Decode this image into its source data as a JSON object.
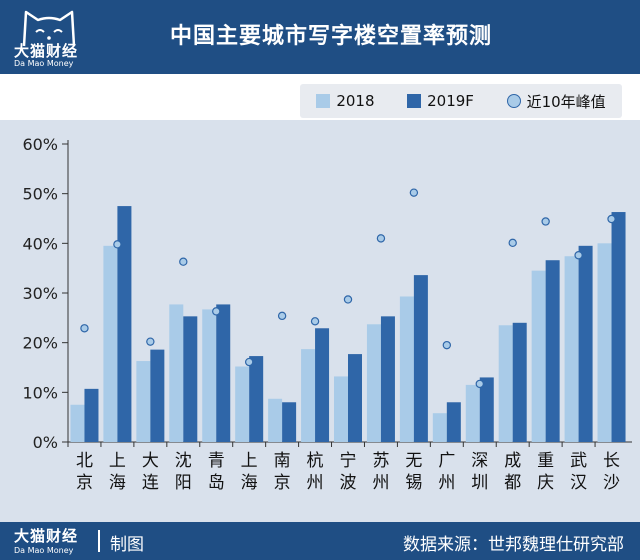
{
  "brand": {
    "name_cn": "大猫财经",
    "name_en": "Da Mao Money"
  },
  "title": "中国主要城市写字楼空置率预测",
  "footer": {
    "made": "制图",
    "source": "数据来源：世邦魏理仕研究部"
  },
  "colors": {
    "s2018": "#a9cbe8",
    "s2019": "#2f66a8",
    "peak_fill": "#a9cbe8",
    "peak_stroke": "#2f66a8",
    "header": "#1f4e84",
    "plot_bg": "#d9e1ec"
  },
  "chart_data": {
    "type": "bar",
    "categories": [
      "北京",
      "上海",
      "大连",
      "沈阳",
      "青岛",
      "上海",
      "南京",
      "杭州",
      "宁波",
      "苏州",
      "无锡",
      "广州",
      "深圳",
      "成都",
      "重庆",
      "武汉",
      "长沙"
    ],
    "series": [
      {
        "name": "2018",
        "values": [
          7.5,
          39.5,
          16.3,
          27.7,
          26.7,
          15.2,
          8.7,
          18.7,
          13.2,
          23.7,
          29.3,
          5.8,
          11.5,
          23.5,
          34.5,
          37.4,
          40.0
        ]
      },
      {
        "name": "2019F",
        "values": [
          10.7,
          47.5,
          18.6,
          25.3,
          27.7,
          17.3,
          8.0,
          22.9,
          17.7,
          25.3,
          33.6,
          8.0,
          13.0,
          24.0,
          36.6,
          39.5,
          46.3
        ]
      },
      {
        "name": "近10年峰值",
        "type": "scatter",
        "values": [
          22.9,
          39.8,
          20.2,
          36.3,
          26.3,
          16.1,
          25.4,
          24.3,
          28.7,
          41.0,
          50.2,
          19.5,
          11.7,
          40.1,
          44.4,
          37.6,
          44.9
        ]
      }
    ],
    "ylim": [
      0,
      60
    ],
    "yticks": [
      0,
      10,
      20,
      30,
      40,
      50,
      60
    ],
    "ytick_labels": [
      "0%",
      "10%",
      "20%",
      "30%",
      "40%",
      "50%",
      "60%"
    ],
    "legend_position": "top-right",
    "grid": false
  }
}
